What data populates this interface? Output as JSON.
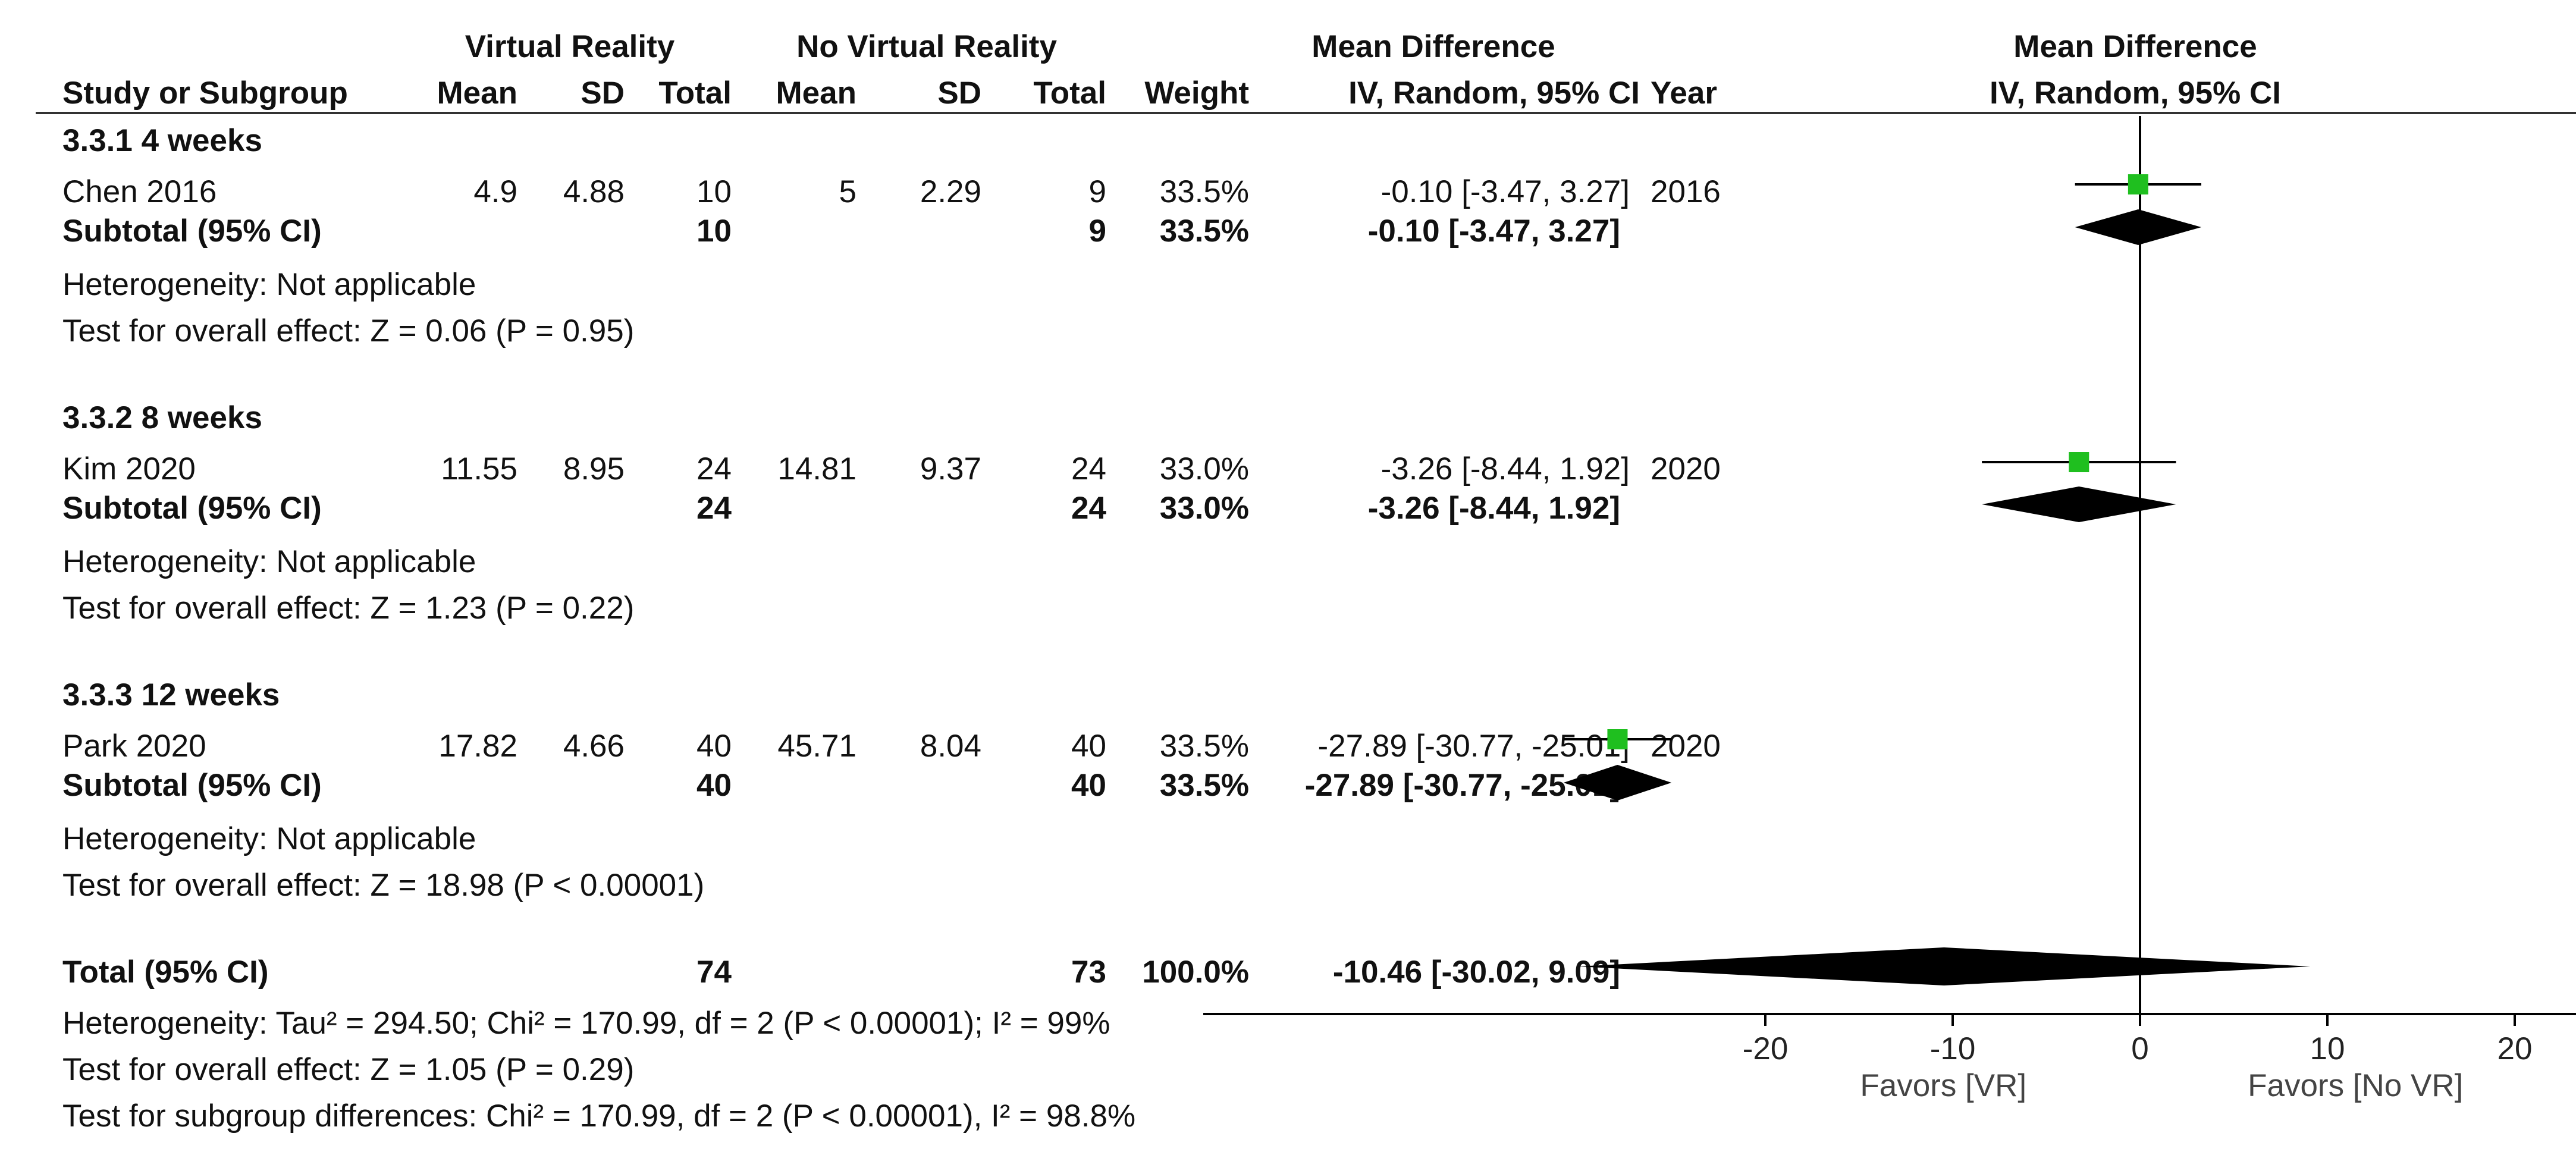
{
  "header": {
    "group1": "Virtual Reality",
    "group2": "No Virtual Reality",
    "md_table_title": "Mean Difference",
    "md_plot_title": "Mean Difference",
    "col_study": "Study or Subgroup",
    "col_mean1": "Mean",
    "col_sd1": "SD",
    "col_total1": "Total",
    "col_mean2": "Mean",
    "col_sd2": "SD",
    "col_total2": "Total",
    "col_weight": "Weight",
    "col_ci": "IV, Random, 95% CI",
    "col_year": "Year",
    "plot_method": "IV, Random, 95% CI"
  },
  "subgroups": [
    {
      "title": "3.3.1 4 weeks",
      "study": {
        "name": "Chen 2016",
        "mean1": "4.9",
        "sd1": "4.88",
        "total1": "10",
        "mean2": "5",
        "sd2": "2.29",
        "total2": "9",
        "weight": "33.5%",
        "ci": "-0.10 [-3.47, 3.27]",
        "year": "2016"
      },
      "subtotal": {
        "label": "Subtotal (95% CI)",
        "total1": "10",
        "total2": "9",
        "weight": "33.5%",
        "ci": "-0.10 [-3.47, 3.27]"
      },
      "heterogeneity": "Heterogeneity: Not applicable",
      "overall": "Test for overall effect: Z = 0.06 (P = 0.95)"
    },
    {
      "title": "3.3.2 8 weeks",
      "study": {
        "name": "Kim 2020",
        "mean1": "11.55",
        "sd1": "8.95",
        "total1": "24",
        "mean2": "14.81",
        "sd2": "9.37",
        "total2": "24",
        "weight": "33.0%",
        "ci": "-3.26 [-8.44, 1.92]",
        "year": "2020"
      },
      "subtotal": {
        "label": "Subtotal (95% CI)",
        "total1": "24",
        "total2": "24",
        "weight": "33.0%",
        "ci": "-3.26 [-8.44, 1.92]"
      },
      "heterogeneity": "Heterogeneity: Not applicable",
      "overall": "Test for overall effect: Z = 1.23 (P = 0.22)"
    },
    {
      "title": "3.3.3 12 weeks",
      "study": {
        "name": "Park 2020",
        "mean1": "17.82",
        "sd1": "4.66",
        "total1": "40",
        "mean2": "45.71",
        "sd2": "8.04",
        "total2": "40",
        "weight": "33.5%",
        "ci": "-27.89 [-30.77, -25.01]",
        "year": "2020"
      },
      "subtotal": {
        "label": "Subtotal (95% CI)",
        "total1": "40",
        "total2": "40",
        "weight": "33.5%",
        "ci": "-27.89 [-30.77, -25.01]"
      },
      "heterogeneity": "Heterogeneity: Not applicable",
      "overall": "Test for overall effect: Z = 18.98 (P < 0.00001)"
    }
  ],
  "total": {
    "label": "Total (95% CI)",
    "total1": "74",
    "total2": "73",
    "weight": "100.0%",
    "ci": "-10.46 [-30.02, 9.09]",
    "heterogeneity": "Heterogeneity: Tau² = 294.50; Chi² = 170.99, df = 2 (P < 0.00001); I² = 99%",
    "overall": "Test for overall effect: Z = 1.05 (P = 0.29)",
    "subgroup_diff": "Test for subgroup differences: Chi² = 170.99, df = 2 (P < 0.00001), I² = 98.8%"
  },
  "colors": {
    "study_marker": "#1fbf1f",
    "diamond": "#000000",
    "axis": "#000000"
  },
  "chart_data": {
    "type": "forest",
    "title": "Mean Difference",
    "xlabel": "IV, Random, 95% CI",
    "xlim": [
      -50,
      30
    ],
    "xticks": [
      -20,
      -10,
      0,
      10,
      20
    ],
    "xtick_labels": [
      "-20",
      "-10",
      "0",
      "10",
      "20"
    ],
    "favors_left": "Favors [VR]",
    "favors_right": "Favors [No VR]",
    "studies": [
      {
        "name": "Chen 2016",
        "md": -0.1,
        "lo": -3.47,
        "hi": 3.27,
        "weight": 33.5
      },
      {
        "name": "Kim 2020",
        "md": -3.26,
        "lo": -8.44,
        "hi": 1.92,
        "weight": 33.0
      },
      {
        "name": "Park 2020",
        "md": -27.89,
        "lo": -30.77,
        "hi": -25.01,
        "weight": 33.5
      }
    ],
    "subtotals": [
      {
        "name": "Subtotal 4 weeks",
        "md": -0.1,
        "lo": -3.47,
        "hi": 3.27
      },
      {
        "name": "Subtotal 8 weeks",
        "md": -3.26,
        "lo": -8.44,
        "hi": 1.92
      },
      {
        "name": "Subtotal 12 weeks",
        "md": -27.89,
        "lo": -30.77,
        "hi": -25.01
      }
    ],
    "overall": {
      "name": "Total",
      "md": -10.46,
      "lo": -30.02,
      "hi": 9.09
    }
  }
}
